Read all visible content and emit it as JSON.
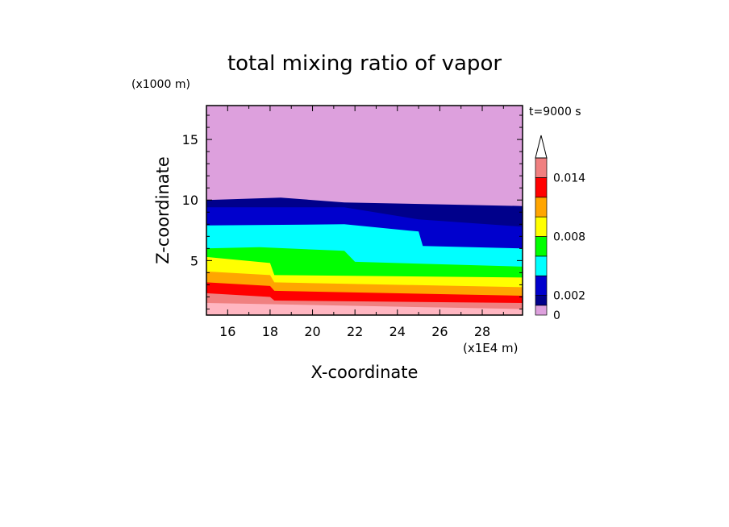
{
  "chart_data": {
    "type": "heatmap",
    "title": "total mixing ratio of vapor",
    "xlabel": "X-coordinate",
    "ylabel": "Z-coordinate",
    "x_unit": "(x1E4 m)",
    "y_unit": "(x1000 m)",
    "time_label": "t=9000 s",
    "xlim": [
      15,
      29.9
    ],
    "ylim": [
      0.5,
      17.8
    ],
    "x_ticks": [
      "16",
      "18",
      "20",
      "22",
      "24",
      "26",
      "28"
    ],
    "y_ticks": [
      "5",
      "10",
      "15"
    ],
    "colorbar": {
      "tick_labels": [
        "0",
        "0.002",
        "0.008",
        "0.014"
      ],
      "levels": [
        0,
        0.001,
        0.002,
        0.004,
        0.006,
        0.008,
        0.01,
        0.012,
        0.014,
        0.016
      ],
      "colors": [
        "#DDA0DD",
        "#00008B",
        "#0000CD",
        "#00FFFF",
        "#00FF00",
        "#FFFF00",
        "#FFA500",
        "#FF0000",
        "#F08080",
        "#FFB6C1"
      ],
      "extend": "max"
    },
    "bands": [
      {
        "min": 0,
        "max": 0.001,
        "color": "#DDA0DD",
        "upper_z": [
          17.8,
          17.8
        ]
      },
      {
        "min": 0.001,
        "max": 0.002,
        "color": "#00008B",
        "upper_z_profile": [
          [
            15,
            10.0
          ],
          [
            18.5,
            10.2
          ],
          [
            21.5,
            9.8
          ],
          [
            29.9,
            9.5
          ]
        ]
      },
      {
        "min": 0.002,
        "max": 0.004,
        "color": "#0000CD",
        "upper_z_profile": [
          [
            15,
            9.4
          ],
          [
            21.5,
            9.4
          ],
          [
            25,
            8.4
          ],
          [
            29.9,
            7.8
          ]
        ]
      },
      {
        "min": 0.004,
        "max": 0.006,
        "color": "#00FFFF",
        "upper_z_profile": [
          [
            15,
            7.9
          ],
          [
            21.5,
            8.0
          ],
          [
            25,
            7.4
          ],
          [
            25.2,
            6.2
          ],
          [
            29.9,
            6.0
          ]
        ]
      },
      {
        "min": 0.006,
        "max": 0.008,
        "color": "#00FF00",
        "upper_z_profile": [
          [
            15,
            6.0
          ],
          [
            17.5,
            6.1
          ],
          [
            21.5,
            5.8
          ],
          [
            22,
            4.9
          ],
          [
            29.9,
            4.5
          ]
        ]
      },
      {
        "min": 0.008,
        "max": 0.01,
        "color": "#FFFF00",
        "upper_z_profile": [
          [
            15,
            5.3
          ],
          [
            18,
            4.8
          ],
          [
            18.2,
            3.8
          ],
          [
            29.9,
            3.6
          ]
        ]
      },
      {
        "min": 0.01,
        "max": 0.012,
        "color": "#FFA500",
        "upper_z_profile": [
          [
            15,
            4.1
          ],
          [
            18,
            3.8
          ],
          [
            18.2,
            3.2
          ],
          [
            29.9,
            2.8
          ]
        ]
      },
      {
        "min": 0.012,
        "max": 0.014,
        "color": "#FF0000",
        "upper_z_profile": [
          [
            15,
            3.2
          ],
          [
            18,
            2.9
          ],
          [
            18.2,
            2.5
          ],
          [
            29.9,
            2.1
          ]
        ]
      },
      {
        "min": 0.014,
        "max": 0.016,
        "color": "#F08080",
        "upper_z_profile": [
          [
            15,
            2.3
          ],
          [
            18,
            2.0
          ],
          [
            18.2,
            1.7
          ],
          [
            29.9,
            1.5
          ]
        ]
      },
      {
        "min": 0.016,
        "max": null,
        "color": "#FFB6C1",
        "upper_z_profile": [
          [
            15,
            1.5
          ],
          [
            29.9,
            1.0
          ]
        ]
      }
    ],
    "grid": false,
    "legend": "right (colorbar)"
  }
}
